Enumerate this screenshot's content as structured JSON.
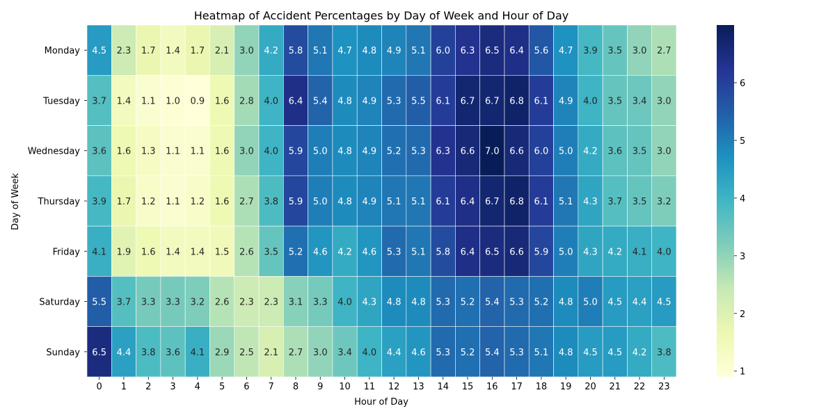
{
  "chart_data": {
    "type": "heatmap",
    "title": "Heatmap of Accident Percentages by Day of Week and Hour of Day",
    "xlabel": "Hour of Day",
    "ylabel": "Day of Week",
    "x_categories": [
      "0",
      "1",
      "2",
      "3",
      "4",
      "5",
      "6",
      "7",
      "8",
      "9",
      "10",
      "11",
      "12",
      "13",
      "14",
      "15",
      "16",
      "17",
      "18",
      "19",
      "20",
      "21",
      "22",
      "23"
    ],
    "y_categories": [
      "Monday",
      "Tuesday",
      "Wednesday",
      "Thursday",
      "Friday",
      "Saturday",
      "Sunday"
    ],
    "values": [
      [
        4.5,
        2.3,
        1.7,
        1.4,
        1.7,
        2.1,
        3.0,
        4.2,
        5.8,
        5.1,
        4.7,
        4.8,
        4.9,
        5.1,
        6.0,
        6.3,
        6.5,
        6.4,
        5.6,
        4.7,
        3.9,
        3.5,
        3.0,
        2.7
      ],
      [
        3.7,
        1.4,
        1.1,
        1.0,
        0.9,
        1.6,
        2.8,
        4.0,
        6.4,
        5.4,
        4.8,
        4.9,
        5.3,
        5.5,
        6.1,
        6.7,
        6.7,
        6.8,
        6.1,
        4.9,
        4.0,
        3.5,
        3.4,
        3.0
      ],
      [
        3.6,
        1.6,
        1.3,
        1.1,
        1.1,
        1.6,
        3.0,
        4.0,
        5.9,
        5.0,
        4.8,
        4.9,
        5.2,
        5.3,
        6.3,
        6.6,
        7.0,
        6.6,
        6.0,
        5.0,
        4.2,
        3.6,
        3.5,
        3.0
      ],
      [
        3.9,
        1.7,
        1.2,
        1.1,
        1.2,
        1.6,
        2.7,
        3.8,
        5.9,
        5.0,
        4.8,
        4.9,
        5.1,
        5.1,
        6.1,
        6.4,
        6.7,
        6.8,
        6.1,
        5.1,
        4.3,
        3.7,
        3.5,
        3.2
      ],
      [
        4.1,
        1.9,
        1.6,
        1.4,
        1.4,
        1.5,
        2.6,
        3.5,
        5.2,
        4.6,
        4.2,
        4.6,
        5.3,
        5.1,
        5.8,
        6.4,
        6.5,
        6.6,
        5.9,
        5.0,
        4.3,
        4.2,
        4.1,
        4.0
      ],
      [
        5.5,
        3.7,
        3.3,
        3.3,
        3.2,
        2.6,
        2.3,
        2.3,
        3.1,
        3.3,
        4.0,
        4.3,
        4.8,
        4.8,
        5.3,
        5.2,
        5.4,
        5.3,
        5.2,
        4.8,
        5.0,
        4.5,
        4.4,
        4.5
      ],
      [
        6.5,
        4.4,
        3.8,
        3.6,
        4.1,
        2.9,
        2.5,
        2.1,
        2.7,
        3.0,
        3.4,
        4.0,
        4.4,
        4.6,
        5.3,
        5.2,
        5.4,
        5.3,
        5.1,
        4.8,
        4.5,
        4.5,
        4.2,
        3.8
      ]
    ],
    "value_range": [
      0.9,
      7.0
    ],
    "colormap": "YlGnBu",
    "colorbar_ticks": [
      1,
      2,
      3,
      4,
      5,
      6
    ],
    "annotation_decimals": 1,
    "grid": false
  }
}
